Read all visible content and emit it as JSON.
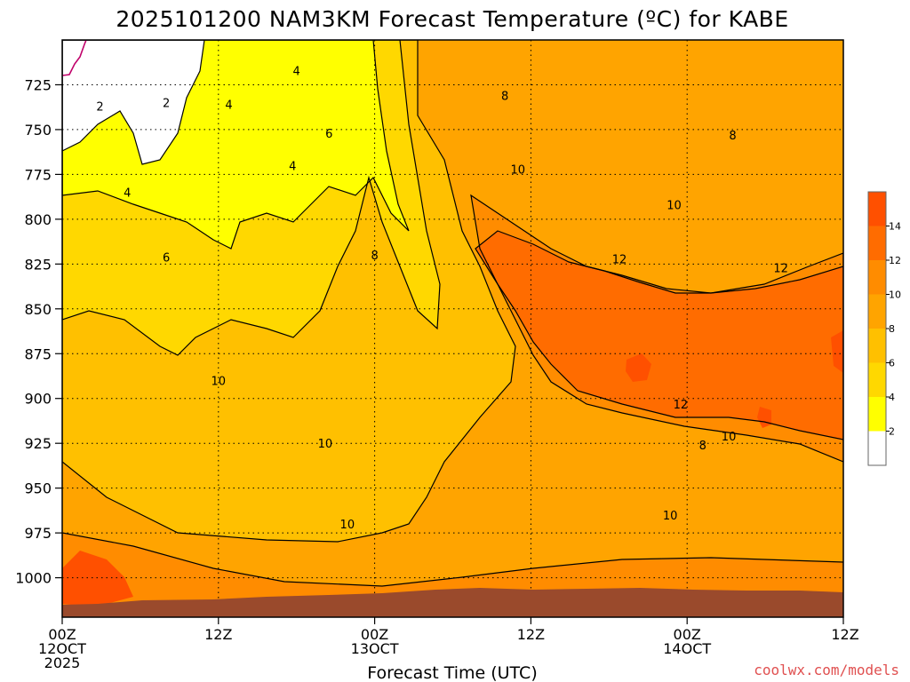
{
  "chart_data": {
    "type": "heatmap",
    "title": "2025101200 NAM3KM Forecast Temperature (ºC) for KABE",
    "xlabel": "Forecast Time (UTC)",
    "ylabel": "",
    "x_ticks": [
      {
        "hour": 0,
        "lines": [
          "00Z",
          "12OCT",
          "2025"
        ]
      },
      {
        "hour": 12,
        "lines": [
          "12Z"
        ]
      },
      {
        "hour": 24,
        "lines": [
          "00Z",
          "13OCT"
        ]
      },
      {
        "hour": 36,
        "lines": [
          "12Z"
        ]
      },
      {
        "hour": 48,
        "lines": [
          "00Z",
          "14OCT"
        ]
      },
      {
        "hour": 60,
        "lines": [
          "12Z"
        ]
      }
    ],
    "xlim": [
      0,
      60
    ],
    "y_ticks": [
      725,
      750,
      775,
      800,
      825,
      850,
      875,
      900,
      925,
      950,
      975,
      1000
    ],
    "ylim": [
      700,
      1022
    ],
    "y_units": "hPa",
    "colorbar": {
      "labels": [
        2,
        4,
        6,
        8,
        10,
        12,
        14
      ],
      "levels": [
        {
          "min": null,
          "max": 2,
          "color": "#ffffff"
        },
        {
          "min": 2,
          "max": 4,
          "color": "#ffff00"
        },
        {
          "min": 4,
          "max": 6,
          "color": "#ffd800"
        },
        {
          "min": 6,
          "max": 8,
          "color": "#ffc000"
        },
        {
          "min": 8,
          "max": 10,
          "color": "#ffa400"
        },
        {
          "min": 10,
          "max": 12,
          "color": "#ff8c00"
        },
        {
          "min": 12,
          "max": 14,
          "color": "#ff6c00"
        },
        {
          "min": 14,
          "max": null,
          "color": "#ff5000"
        }
      ]
    },
    "ground_color": "#9a4a2c",
    "freezing_line_color": "#c0006a",
    "contour_labels": [
      {
        "text": "2",
        "hour": 2.9,
        "p": 737
      },
      {
        "text": "2",
        "hour": 8.0,
        "p": 735
      },
      {
        "text": "4",
        "hour": 5.0,
        "p": 785
      },
      {
        "text": "4",
        "hour": 12.8,
        "p": 736
      },
      {
        "text": "4",
        "hour": 18.0,
        "p": 717
      },
      {
        "text": "4",
        "hour": 17.7,
        "p": 770
      },
      {
        "text": "6",
        "hour": 8.0,
        "p": 821
      },
      {
        "text": "6",
        "hour": 20.5,
        "p": 752
      },
      {
        "text": "8",
        "hour": 24.0,
        "p": 820
      },
      {
        "text": "8",
        "hour": 34.0,
        "p": 731
      },
      {
        "text": "8",
        "hour": 51.5,
        "p": 753
      },
      {
        "text": "8",
        "hour": 49.2,
        "p": 926
      },
      {
        "text": "10",
        "hour": 12.0,
        "p": 890
      },
      {
        "text": "10",
        "hour": 20.2,
        "p": 925
      },
      {
        "text": "10",
        "hour": 21.9,
        "p": 970
      },
      {
        "text": "10",
        "hour": 35.0,
        "p": 772
      },
      {
        "text": "10",
        "hour": 47.0,
        "p": 792
      },
      {
        "text": "10",
        "hour": 51.2,
        "p": 921
      },
      {
        "text": "10",
        "hour": 46.7,
        "p": 965
      },
      {
        "text": "12",
        "hour": 42.8,
        "p": 822
      },
      {
        "text": "12",
        "hour": 55.2,
        "p": 827
      },
      {
        "text": "12",
        "hour": 47.5,
        "p": 903
      }
    ]
  },
  "credit": "coolwx.com/models"
}
